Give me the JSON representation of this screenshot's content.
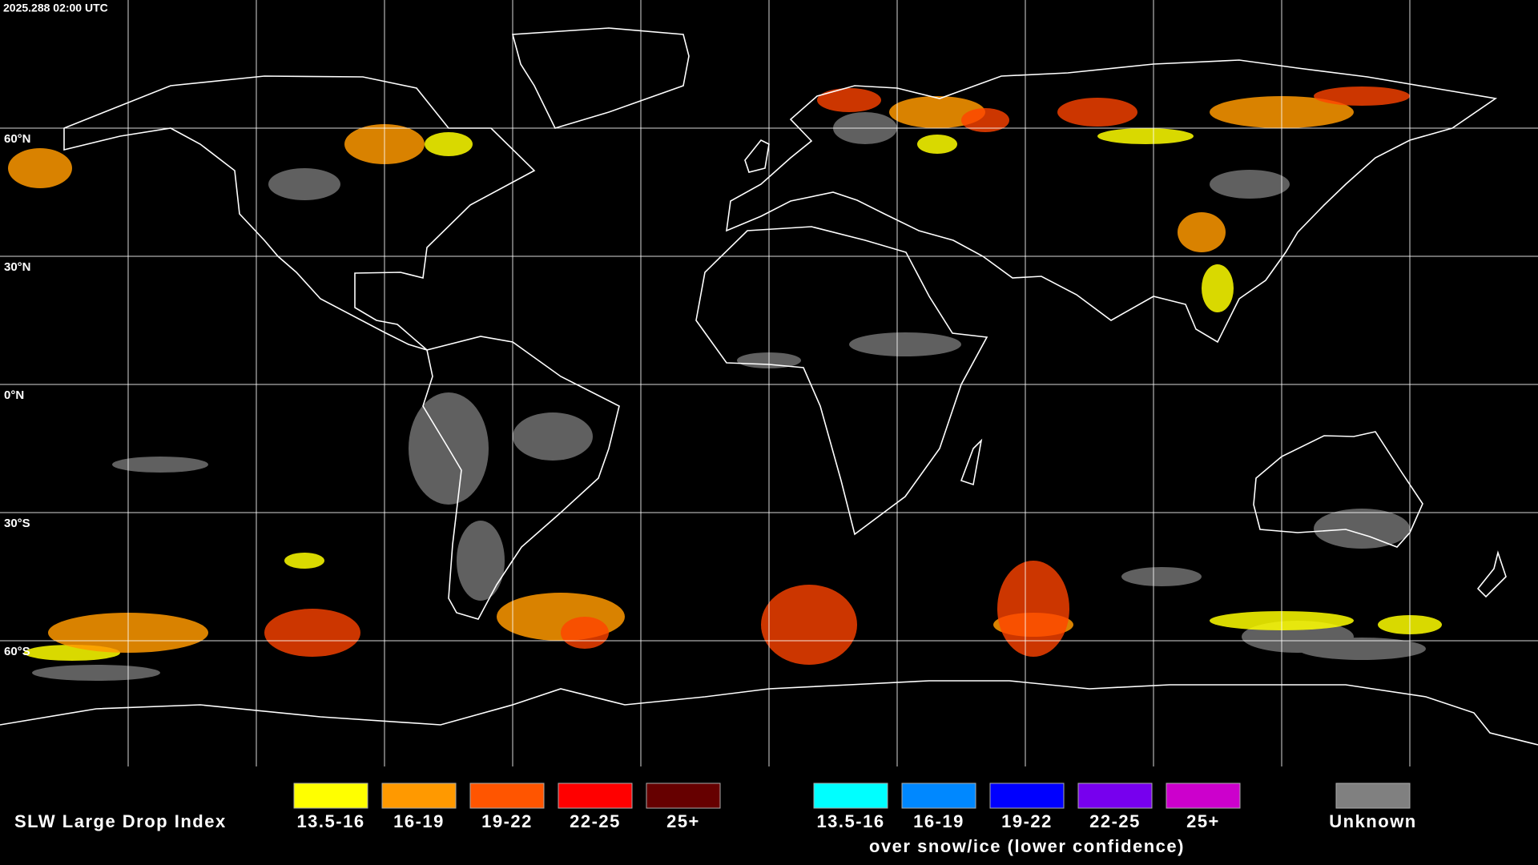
{
  "header": {
    "timestamp": "2025.288 02:00 UTC"
  },
  "grid": {
    "lat_labels": [
      "60°N",
      "30°N",
      "0°N",
      "30°S",
      "60°S"
    ]
  },
  "legend": {
    "title": "SLW Large Drop Index",
    "groups": [
      {
        "items": [
          {
            "label": "13.5-16",
            "color": "#ffff00"
          },
          {
            "label": "16-19",
            "color": "#ff9900"
          },
          {
            "label": "19-22",
            "color": "#ff5500"
          },
          {
            "label": "22-25",
            "color": "#ff0000"
          },
          {
            "label": "25+",
            "color": "#660000"
          }
        ]
      },
      {
        "items": [
          {
            "label": "13.5-16",
            "color": "#00ffff"
          },
          {
            "label": "16-19",
            "color": "#0088ff"
          },
          {
            "label": "19-22",
            "color": "#0000ff"
          },
          {
            "label": "22-25",
            "color": "#7700ee"
          },
          {
            "label": "25+",
            "color": "#cc00cc"
          }
        ],
        "note": "over snow/ice (lower confidence)"
      }
    ],
    "unknown": {
      "label": "Unknown",
      "color": "#808080"
    }
  }
}
